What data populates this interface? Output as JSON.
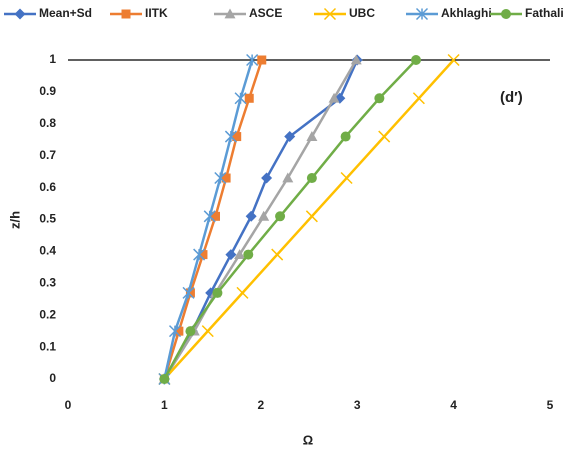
{
  "chart_data": {
    "type": "line",
    "x_label": "Ω",
    "y_label": "z/h",
    "annotation": "(d′)",
    "xlim": [
      0,
      5
    ],
    "xticks": [
      0,
      1,
      2,
      3,
      4,
      5
    ],
    "ylim": [
      0,
      1
    ],
    "yticks": [
      0,
      0.1,
      0.2,
      0.3,
      0.4,
      0.5,
      0.6,
      0.7,
      0.8,
      0.9,
      1
    ],
    "legend": "top",
    "series": [
      {
        "name": "Mean+Sd",
        "color": "#4472c4",
        "marker": "diamond",
        "x": [
          1.0,
          1.29,
          1.48,
          1.69,
          1.9,
          2.06,
          2.3,
          2.82,
          3.0
        ],
        "values": [
          0,
          0.15,
          0.27,
          0.39,
          0.51,
          0.63,
          0.76,
          0.88,
          1
        ]
      },
      {
        "name": "IITK",
        "color": "#ed7d31",
        "marker": "square",
        "x": [
          1.0,
          1.15,
          1.27,
          1.4,
          1.53,
          1.64,
          1.75,
          1.88,
          2.01
        ],
        "values": [
          0,
          0.15,
          0.27,
          0.39,
          0.51,
          0.63,
          0.76,
          0.88,
          1
        ]
      },
      {
        "name": "ASCE",
        "color": "#a5a5a5",
        "marker": "triangle",
        "x": [
          1.0,
          1.31,
          1.53,
          1.78,
          2.03,
          2.28,
          2.53,
          2.76,
          2.99
        ],
        "values": [
          0,
          0.15,
          0.27,
          0.39,
          0.51,
          0.63,
          0.76,
          0.88,
          1
        ]
      },
      {
        "name": "UBC",
        "color": "#ffc000",
        "marker": "x",
        "x": [
          1.0,
          1.45,
          1.81,
          2.17,
          2.53,
          2.89,
          3.28,
          3.64,
          4.0
        ],
        "values": [
          0,
          0.15,
          0.27,
          0.39,
          0.51,
          0.63,
          0.76,
          0.88,
          1
        ]
      },
      {
        "name": "Akhlaghi",
        "color": "#5b9bd5",
        "marker": "asterisk",
        "x": [
          1.0,
          1.11,
          1.25,
          1.36,
          1.47,
          1.58,
          1.69,
          1.79,
          1.91
        ],
        "values": [
          0,
          0.15,
          0.27,
          0.39,
          0.51,
          0.63,
          0.76,
          0.88,
          1
        ]
      },
      {
        "name": "Fathali",
        "color": "#70ad47",
        "marker": "circle",
        "x": [
          1.0,
          1.27,
          1.55,
          1.87,
          2.2,
          2.53,
          2.88,
          3.23,
          3.61
        ],
        "values": [
          0,
          0.15,
          0.27,
          0.39,
          0.51,
          0.63,
          0.76,
          0.88,
          1
        ]
      }
    ]
  }
}
